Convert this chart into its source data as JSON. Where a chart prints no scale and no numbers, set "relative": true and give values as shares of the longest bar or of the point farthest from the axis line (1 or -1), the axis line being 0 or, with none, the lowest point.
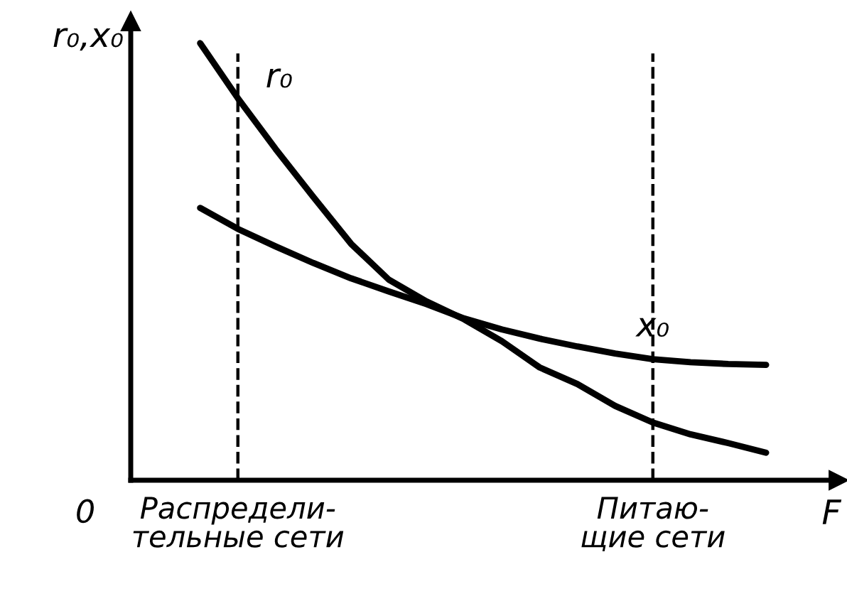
{
  "chart_data": {
    "type": "line",
    "relative": true,
    "ylabel": "r₀,x₀",
    "xlabel": "F",
    "categories": [
      null,
      "Распредели-\nтельные сети",
      null,
      null,
      null,
      null,
      null,
      null,
      null,
      null,
      null,
      null,
      "Питаю-\nщие сети",
      null,
      null,
      null
    ],
    "series": [
      {
        "name": "r₀",
        "color": "#000000",
        "values": [
          1.0,
          0.874,
          0.758,
          0.648,
          0.541,
          0.459,
          0.409,
          0.368,
          0.318,
          0.258,
          0.22,
          0.17,
          0.132,
          0.105,
          0.085,
          0.063
        ]
      },
      {
        "name": "x₀",
        "color": "#000000",
        "values": [
          0.623,
          0.575,
          0.535,
          0.497,
          0.462,
          0.432,
          0.403,
          0.37,
          0.345,
          0.324,
          0.306,
          0.29,
          0.277,
          0.27,
          0.266,
          0.264
        ]
      }
    ],
    "ref_lines": [
      {
        "axis": "x",
        "value": "Распредели-\nтельные сети",
        "line_style": "dashed",
        "color": "#000000"
      },
      {
        "axis": "x",
        "value": "Питаю-\nщие сети",
        "line_style": "dashed",
        "color": "#000000"
      }
    ],
    "annotations": [
      "0"
    ],
    "grid": false,
    "legend": false,
    "marker": "none",
    "line_style": "solid"
  }
}
